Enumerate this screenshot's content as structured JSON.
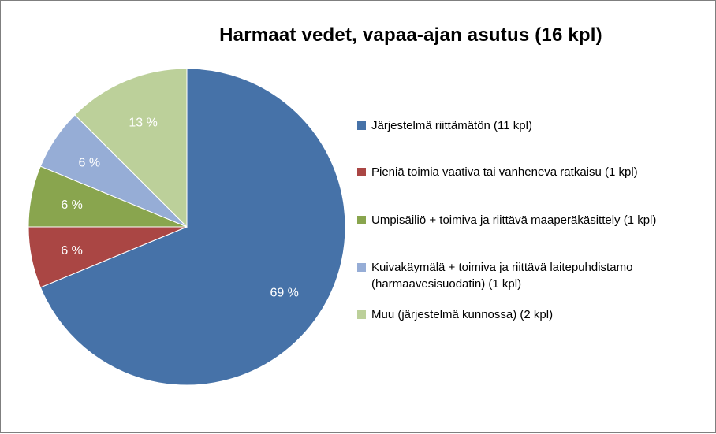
{
  "chart_data": {
    "type": "pie",
    "title": "Harmaat vedet, vapaa-ajan asutus (16 kpl)",
    "slices": [
      {
        "label": "Järjestelmä riittämätön (11 kpl)",
        "value": 11,
        "percent_label": "69 %",
        "color": "#4672A8"
      },
      {
        "label": "Pieniä toimia vaativa tai vanheneva ratkaisu (1 kpl)",
        "value": 1,
        "percent_label": "6 %",
        "color": "#AA4644"
      },
      {
        "label": "Umpisäiliö + toimiva ja riittävä maaperäkäsittely (1 kpl)",
        "value": 1,
        "percent_label": "6 %",
        "color": "#89A54E"
      },
      {
        "label": "Kuivakäymälä + toimiva ja riittävä laitepuhdistamo\n(harmaavesisuodatin) (1 kpl)",
        "value": 1,
        "percent_label": "6 %",
        "color": "#96ADD6"
      },
      {
        "label": "Muu (järjestelmä kunnossa) (2 kpl)",
        "value": 2,
        "percent_label": "13 %",
        "color": "#BCD09A"
      }
    ],
    "legend_position": "right"
  }
}
